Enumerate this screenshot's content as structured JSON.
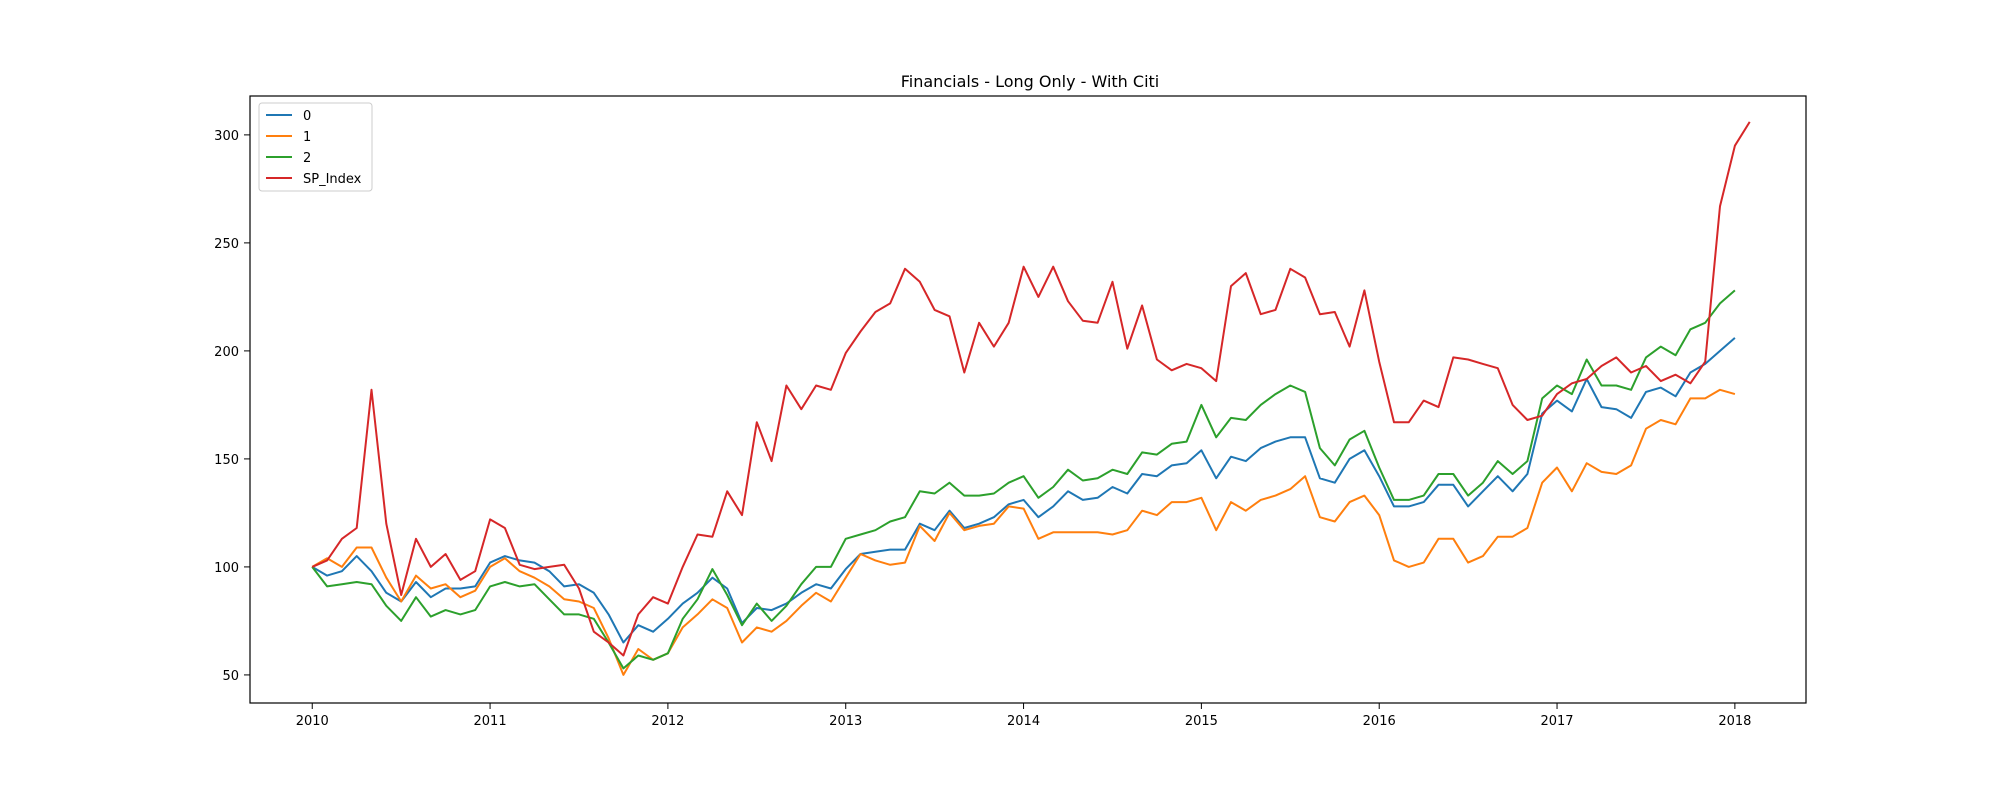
{
  "chart_data": {
    "type": "line",
    "title": "Financials  - Long Only - With Citi",
    "xlabel": "",
    "ylabel": "",
    "xlim": [
      2009.65,
      2018.4
    ],
    "ylim": [
      37,
      318
    ],
    "x_ticks": [
      2010,
      2011,
      2012,
      2013,
      2014,
      2015,
      2016,
      2017,
      2018
    ],
    "x_tick_labels": [
      "2010",
      "2011",
      "2012",
      "2013",
      "2014",
      "2015",
      "2016",
      "2017",
      "2018"
    ],
    "y_ticks": [
      50,
      100,
      150,
      200,
      250,
      300
    ],
    "y_tick_labels": [
      "50",
      "100",
      "150",
      "200",
      "250",
      "300"
    ],
    "grid": false,
    "legend_position": "top-left",
    "x_start": 2010,
    "x_step": 0.0833333,
    "series": [
      {
        "name": "0",
        "color": "#1f77b4",
        "values": [
          100,
          96,
          98,
          105,
          98,
          88,
          84,
          93,
          86,
          90,
          90,
          91,
          102,
          105,
          103,
          102,
          98,
          91,
          92,
          88,
          78,
          65,
          73,
          70,
          76,
          83,
          88,
          95,
          90,
          74,
          81,
          80,
          83,
          88,
          92,
          90,
          99,
          106,
          107,
          108,
          108,
          120,
          117,
          126,
          118,
          120,
          123,
          129,
          131,
          123,
          128,
          135,
          131,
          132,
          137,
          134,
          143,
          142,
          147,
          148,
          154,
          141,
          151,
          149,
          155,
          158,
          160,
          160,
          141,
          139,
          150,
          154,
          142,
          128,
          128,
          130,
          138,
          138,
          128,
          135,
          142,
          135,
          143,
          171,
          177,
          172,
          187,
          174,
          173,
          169,
          181,
          183,
          179,
          190,
          194,
          200,
          206
        ]
      },
      {
        "name": "1",
        "color": "#ff7f0e",
        "values": [
          100,
          104,
          100,
          109,
          109,
          95,
          84,
          96,
          90,
          92,
          86,
          89,
          100,
          104,
          98,
          95,
          91,
          85,
          84,
          81,
          67,
          50,
          62,
          57,
          60,
          72,
          78,
          85,
          81,
          65,
          72,
          70,
          75,
          82,
          88,
          84,
          95,
          106,
          103,
          101,
          102,
          119,
          112,
          125,
          117,
          119,
          120,
          128,
          127,
          113,
          116,
          116,
          116,
          116,
          115,
          117,
          126,
          124,
          130,
          130,
          132,
          117,
          130,
          126,
          131,
          133,
          136,
          142,
          123,
          121,
          130,
          133,
          124,
          103,
          100,
          102,
          113,
          113,
          102,
          105,
          114,
          114,
          118,
          139,
          146,
          135,
          148,
          144,
          143,
          147,
          164,
          168,
          166,
          178,
          178,
          182,
          180
        ]
      },
      {
        "name": "2",
        "color": "#2ca02c",
        "values": [
          100,
          91,
          92,
          93,
          92,
          82,
          75,
          86,
          77,
          80,
          78,
          80,
          91,
          93,
          91,
          92,
          85,
          78,
          78,
          76,
          65,
          53,
          59,
          57,
          60,
          76,
          85,
          99,
          87,
          73,
          83,
          75,
          82,
          92,
          100,
          100,
          113,
          115,
          117,
          121,
          123,
          135,
          134,
          139,
          133,
          133,
          134,
          139,
          142,
          132,
          137,
          145,
          140,
          141,
          145,
          143,
          153,
          152,
          157,
          158,
          175,
          160,
          169,
          168,
          175,
          180,
          184,
          181,
          155,
          147,
          159,
          163,
          146,
          131,
          131,
          133,
          143,
          143,
          133,
          139,
          149,
          143,
          149,
          178,
          184,
          180,
          196,
          184,
          184,
          182,
          197,
          202,
          198,
          210,
          213,
          222,
          228
        ]
      },
      {
        "name": "SP_Index",
        "color": "#d62728",
        "values": [
          100,
          103,
          113,
          118,
          182,
          120,
          87,
          113,
          100,
          106,
          94,
          98,
          122,
          118,
          101,
          99,
          100,
          101,
          90,
          70,
          65,
          59,
          78,
          86,
          83,
          100,
          115,
          114,
          135,
          124,
          167,
          149,
          184,
          173,
          184,
          182,
          199,
          209,
          218,
          222,
          238,
          232,
          219,
          216,
          190,
          213,
          202,
          213,
          239,
          225,
          239,
          223,
          214,
          213,
          232,
          201,
          221,
          196,
          191,
          194,
          192,
          186,
          230,
          236,
          217,
          219,
          238,
          234,
          217,
          218,
          202,
          228,
          195,
          167,
          167,
          177,
          174,
          197,
          196,
          194,
          192,
          175,
          168,
          170,
          180,
          185,
          187,
          193,
          197,
          190,
          193,
          186,
          189,
          185,
          195,
          267,
          295,
          306
        ]
      }
    ]
  }
}
